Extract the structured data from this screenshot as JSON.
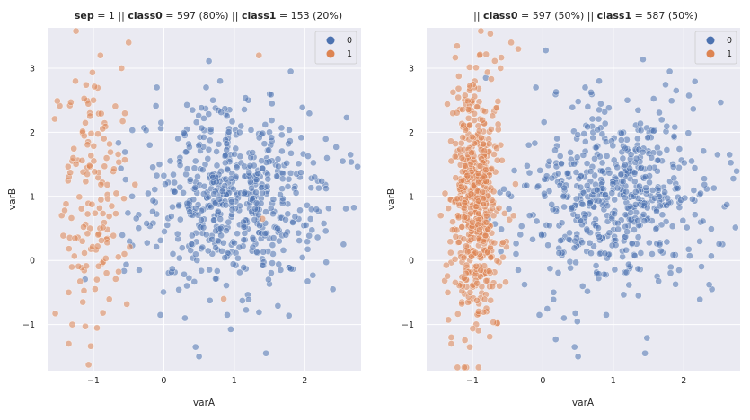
{
  "charts": [
    {
      "title": {
        "p1b": "sep",
        "p2": " = 1 || ",
        "p3b": "class0",
        "p4": " = 597 (80%)  || ",
        "p5b": "class1",
        "p6": " = 153 (20%)"
      },
      "xlabel": "varA",
      "ylabel": "varB",
      "legend": [
        "0",
        "1"
      ]
    },
    {
      "title": {
        "p1b": "",
        "p2": "|| ",
        "p3b": "class0",
        "p4": " = 597 (50%)  || ",
        "p5b": "class1",
        "p6": " = 587 (50%)"
      },
      "xlabel": "varA",
      "ylabel": "varB",
      "legend": [
        "0",
        "1"
      ]
    }
  ],
  "colors": {
    "background": "#eaeaf2",
    "grid": "#ffffff",
    "class0": "#4c72b0",
    "class1": "#dd8452"
  },
  "chart_data": [
    {
      "type": "scatter",
      "title": "sep = 1 || class0 = 597 (80%) || class1 = 153 (20%)",
      "xlabel": "varA",
      "ylabel": "varB",
      "xlim": [
        -1.65,
        2.8
      ],
      "ylim": [
        -1.72,
        3.63
      ],
      "xticks": [
        -1,
        0,
        1,
        2
      ],
      "yticks": [
        -1,
        0,
        1,
        2,
        3
      ],
      "grid": true,
      "legend_position": "top-right",
      "series": [
        {
          "name": "0",
          "count": 597,
          "center": [
            1.0,
            1.0
          ],
          "spread": [
            0.65,
            0.7
          ],
          "points": [
            [
              0.6,
              2.7
            ],
            [
              0.8,
              2.8
            ],
            [
              1.2,
              2.5
            ],
            [
              1.8,
              2.95
            ],
            [
              2.65,
              1.65
            ],
            [
              2.55,
              0.25
            ],
            [
              2.4,
              -0.45
            ],
            [
              1.45,
              -1.45
            ],
            [
              0.9,
              -0.85
            ],
            [
              0.45,
              -1.35
            ],
            [
              0.5,
              -1.5
            ],
            [
              -0.05,
              -0.85
            ],
            [
              0.3,
              -0.9
            ],
            [
              -0.35,
              -0.15
            ],
            [
              -0.45,
              1.0
            ],
            [
              -0.2,
              1.8
            ],
            [
              -0.1,
              2.7
            ],
            [
              1.55,
              0.1
            ],
            [
              0.05,
              0.55
            ],
            [
              0.2,
              1.9
            ]
          ]
        },
        {
          "name": "1",
          "count": 153,
          "center": [
            -1.0,
            1.0
          ],
          "spread": [
            0.22,
            1.0
          ],
          "points": [
            [
              -0.5,
              3.4
            ],
            [
              -0.9,
              3.2
            ],
            [
              -0.6,
              3.0
            ],
            [
              -1.0,
              2.5
            ],
            [
              -1.3,
              1.55
            ],
            [
              -1.45,
              0.7
            ],
            [
              -1.35,
              -0.5
            ],
            [
              -1.3,
              -1.0
            ],
            [
              -1.35,
              -1.3
            ],
            [
              -1.15,
              -0.65
            ],
            [
              -0.95,
              -0.3
            ],
            [
              -0.85,
              1.9
            ],
            [
              -1.05,
              0.5
            ],
            [
              0.85,
              -0.6
            ],
            [
              1.4,
              0.65
            ],
            [
              1.35,
              3.2
            ]
          ]
        }
      ]
    },
    {
      "type": "scatter",
      "title": "|| class0 = 597 (50%) || class1 = 587 (50%)",
      "xlabel": "varA",
      "ylabel": "varB",
      "xlim": [
        -1.65,
        2.8
      ],
      "ylim": [
        -1.72,
        3.63
      ],
      "xticks": [
        -1,
        0,
        1,
        2
      ],
      "yticks": [
        -1,
        0,
        1,
        2,
        3
      ],
      "grid": true,
      "legend_position": "top-right",
      "series": [
        {
          "name": "0",
          "count": 597,
          "center": [
            1.0,
            1.0
          ],
          "spread": [
            0.65,
            0.7
          ],
          "points": [
            [
              0.6,
              2.7
            ],
            [
              0.8,
              2.8
            ],
            [
              1.2,
              2.5
            ],
            [
              1.8,
              2.95
            ],
            [
              2.65,
              1.65
            ],
            [
              2.55,
              0.25
            ],
            [
              2.4,
              -0.45
            ],
            [
              1.45,
              -1.45
            ],
            [
              0.9,
              -0.85
            ],
            [
              0.45,
              -1.35
            ],
            [
              0.5,
              -1.5
            ],
            [
              -0.05,
              -0.85
            ],
            [
              0.3,
              -0.9
            ],
            [
              -0.35,
              -0.15
            ],
            [
              -0.45,
              1.0
            ],
            [
              -0.2,
              1.8
            ],
            [
              -0.1,
              2.7
            ],
            [
              1.55,
              0.1
            ],
            [
              0.05,
              0.55
            ],
            [
              0.2,
              1.9
            ]
          ]
        },
        {
          "name": "1",
          "count": 587,
          "center": [
            -0.95,
            1.0
          ],
          "spread": [
            0.17,
            0.95
          ],
          "points": [
            [
              -0.45,
              3.4
            ],
            [
              -0.35,
              3.3
            ],
            [
              -0.6,
              3.0
            ],
            [
              -0.9,
              3.2
            ],
            [
              -1.0,
              2.5
            ],
            [
              -1.3,
              1.55
            ],
            [
              -1.45,
              0.7
            ],
            [
              -1.35,
              -0.5
            ],
            [
              -1.3,
              -1.2
            ],
            [
              -1.3,
              -1.3
            ],
            [
              -1.15,
              -0.65
            ],
            [
              -0.7,
              -0.35
            ],
            [
              -0.85,
              1.9
            ]
          ]
        }
      ]
    }
  ]
}
